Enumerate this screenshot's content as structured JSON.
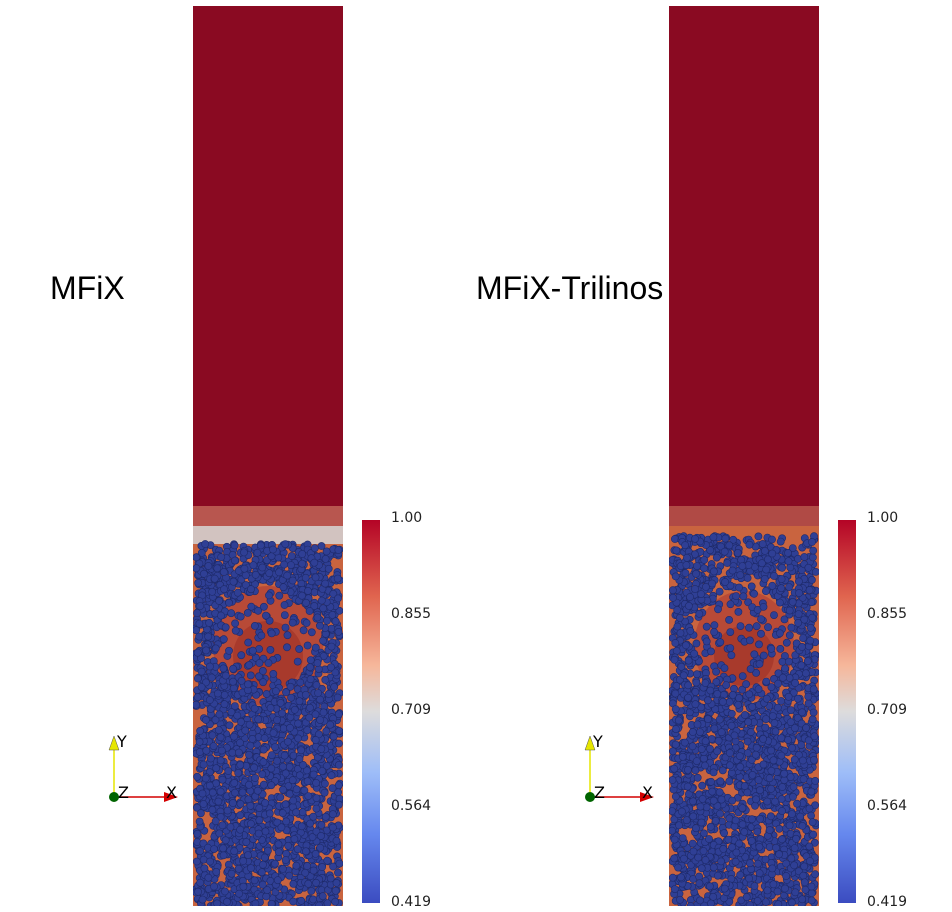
{
  "panels": [
    {
      "title": "MFiX",
      "colorbar": {
        "max": "1.00",
        "tick2": "0.855",
        "tick3": "0.709",
        "tick4": "0.564",
        "min": "0.419"
      },
      "axes": {
        "y": "Y",
        "z": "Z",
        "x": "X"
      }
    },
    {
      "title": "MFiX-Trilinos",
      "colorbar": {
        "max": "1.00",
        "tick2": "0.855",
        "tick3": "0.709",
        "tick4": "0.564",
        "min": "0.419"
      },
      "axes": {
        "y": "Y",
        "z": "Z",
        "x": "X"
      }
    }
  ],
  "colors": {
    "colormap_high": "#b40426",
    "colormap_mid": "#dddcdc",
    "colormap_low": "#3b4cc0",
    "particle": "#2f3f95",
    "axis_y": "#e6e600",
    "axis_x": "#d40000",
    "axis_origin": "#006400"
  }
}
